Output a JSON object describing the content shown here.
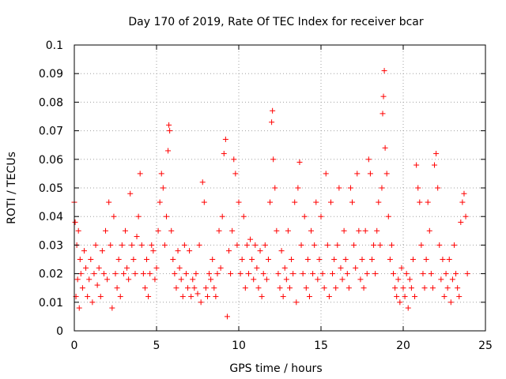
{
  "chart_data": {
    "type": "scatter",
    "title": "Day 170 of 2019, Rate Of TEC Index for receiver bcar",
    "xlabel": "GPS time / hours",
    "ylabel": "ROTI / TECUs",
    "xlim": [
      0,
      25
    ],
    "ylim": [
      0,
      0.1
    ],
    "xticks": [
      0,
      5,
      10,
      15,
      20,
      25
    ],
    "xtick_labels": [
      "0",
      "5",
      "10",
      "15",
      "20",
      "25"
    ],
    "yticks": [
      0,
      0.01,
      0.02,
      0.03,
      0.04,
      0.05,
      0.06,
      0.07,
      0.08,
      0.09,
      0.1
    ],
    "ytick_labels": [
      "0",
      "0.01",
      "0.02",
      "0.03",
      "0.04",
      "0.05",
      "0.06",
      "0.07",
      "0.08",
      "0.09",
      "0.1"
    ],
    "grid": true,
    "marker": "plus",
    "color": "#ff0000",
    "series": [
      {
        "points": [
          [
            0.0,
            0.045
          ],
          [
            0.05,
            0.038
          ],
          [
            0.1,
            0.012
          ],
          [
            0.15,
            0.03
          ],
          [
            0.2,
            0.018
          ],
          [
            0.25,
            0.035
          ],
          [
            0.3,
            0.008
          ],
          [
            0.35,
            0.025
          ],
          [
            0.4,
            0.02
          ],
          [
            0.5,
            0.015
          ],
          [
            0.6,
            0.028
          ],
          [
            0.7,
            0.022
          ],
          [
            0.8,
            0.012
          ],
          [
            0.9,
            0.018
          ],
          [
            1.0,
            0.025
          ],
          [
            1.1,
            0.01
          ],
          [
            1.2,
            0.02
          ],
          [
            1.3,
            0.03
          ],
          [
            1.4,
            0.016
          ],
          [
            1.5,
            0.022
          ],
          [
            1.6,
            0.012
          ],
          [
            1.7,
            0.028
          ],
          [
            1.8,
            0.02
          ],
          [
            1.9,
            0.035
          ],
          [
            2.0,
            0.018
          ],
          [
            2.1,
            0.045
          ],
          [
            2.2,
            0.03
          ],
          [
            2.3,
            0.008
          ],
          [
            2.4,
            0.04
          ],
          [
            2.5,
            0.02
          ],
          [
            2.6,
            0.015
          ],
          [
            2.7,
            0.025
          ],
          [
            2.8,
            0.012
          ],
          [
            2.9,
            0.03
          ],
          [
            3.0,
            0.02
          ],
          [
            3.1,
            0.035
          ],
          [
            3.2,
            0.022
          ],
          [
            3.3,
            0.018
          ],
          [
            3.4,
            0.048
          ],
          [
            3.5,
            0.03
          ],
          [
            3.6,
            0.025
          ],
          [
            3.7,
            0.02
          ],
          [
            3.8,
            0.033
          ],
          [
            3.9,
            0.04
          ],
          [
            4.0,
            0.055
          ],
          [
            4.1,
            0.03
          ],
          [
            4.2,
            0.02
          ],
          [
            4.3,
            0.015
          ],
          [
            4.4,
            0.025
          ],
          [
            4.5,
            0.012
          ],
          [
            4.6,
            0.02
          ],
          [
            4.7,
            0.03
          ],
          [
            4.8,
            0.028
          ],
          [
            4.9,
            0.018
          ],
          [
            5.0,
            0.022
          ],
          [
            5.1,
            0.035
          ],
          [
            5.2,
            0.045
          ],
          [
            5.3,
            0.055
          ],
          [
            5.4,
            0.05
          ],
          [
            5.5,
            0.03
          ],
          [
            5.6,
            0.04
          ],
          [
            5.7,
            0.063
          ],
          [
            5.75,
            0.072
          ],
          [
            5.8,
            0.07
          ],
          [
            5.9,
            0.035
          ],
          [
            6.0,
            0.025
          ],
          [
            6.1,
            0.02
          ],
          [
            6.2,
            0.015
          ],
          [
            6.3,
            0.028
          ],
          [
            6.4,
            0.022
          ],
          [
            6.5,
            0.018
          ],
          [
            6.6,
            0.012
          ],
          [
            6.7,
            0.03
          ],
          [
            6.8,
            0.02
          ],
          [
            6.9,
            0.015
          ],
          [
            7.0,
            0.028
          ],
          [
            7.1,
            0.012
          ],
          [
            7.2,
            0.018
          ],
          [
            7.3,
            0.015
          ],
          [
            7.4,
            0.02
          ],
          [
            7.5,
            0.013
          ],
          [
            7.6,
            0.03
          ],
          [
            7.7,
            0.01
          ],
          [
            7.8,
            0.052
          ],
          [
            7.9,
            0.045
          ],
          [
            8.0,
            0.015
          ],
          [
            8.1,
            0.012
          ],
          [
            8.2,
            0.02
          ],
          [
            8.3,
            0.018
          ],
          [
            8.4,
            0.025
          ],
          [
            8.5,
            0.015
          ],
          [
            8.6,
            0.012
          ],
          [
            8.7,
            0.02
          ],
          [
            8.8,
            0.035
          ],
          [
            8.9,
            0.022
          ],
          [
            9.0,
            0.04
          ],
          [
            9.1,
            0.062
          ],
          [
            9.2,
            0.067
          ],
          [
            9.3,
            0.005
          ],
          [
            9.4,
            0.028
          ],
          [
            9.5,
            0.02
          ],
          [
            9.6,
            0.035
          ],
          [
            9.7,
            0.06
          ],
          [
            9.8,
            0.055
          ],
          [
            9.9,
            0.03
          ],
          [
            10.0,
            0.045
          ],
          [
            10.1,
            0.02
          ],
          [
            10.2,
            0.025
          ],
          [
            10.3,
            0.04
          ],
          [
            10.4,
            0.015
          ],
          [
            10.5,
            0.03
          ],
          [
            10.6,
            0.02
          ],
          [
            10.7,
            0.032
          ],
          [
            10.8,
            0.025
          ],
          [
            10.9,
            0.018
          ],
          [
            11.0,
            0.03
          ],
          [
            11.1,
            0.022
          ],
          [
            11.2,
            0.015
          ],
          [
            11.3,
            0.028
          ],
          [
            11.4,
            0.012
          ],
          [
            11.5,
            0.02
          ],
          [
            11.6,
            0.03
          ],
          [
            11.7,
            0.018
          ],
          [
            11.8,
            0.025
          ],
          [
            11.9,
            0.045
          ],
          [
            12.0,
            0.073
          ],
          [
            12.05,
            0.077
          ],
          [
            12.1,
            0.06
          ],
          [
            12.2,
            0.05
          ],
          [
            12.3,
            0.035
          ],
          [
            12.4,
            0.02
          ],
          [
            12.5,
            0.015
          ],
          [
            12.6,
            0.028
          ],
          [
            12.7,
            0.012
          ],
          [
            12.8,
            0.022
          ],
          [
            12.9,
            0.018
          ],
          [
            13.0,
            0.035
          ],
          [
            13.1,
            0.015
          ],
          [
            13.2,
            0.025
          ],
          [
            13.3,
            0.02
          ],
          [
            13.4,
            0.045
          ],
          [
            13.5,
            0.01
          ],
          [
            13.6,
            0.05
          ],
          [
            13.7,
            0.059
          ],
          [
            13.8,
            0.03
          ],
          [
            13.9,
            0.02
          ],
          [
            14.0,
            0.04
          ],
          [
            14.1,
            0.015
          ],
          [
            14.2,
            0.025
          ],
          [
            14.3,
            0.012
          ],
          [
            14.4,
            0.035
          ],
          [
            14.5,
            0.02
          ],
          [
            14.6,
            0.03
          ],
          [
            14.7,
            0.045
          ],
          [
            14.8,
            0.018
          ],
          [
            14.9,
            0.025
          ],
          [
            15.0,
            0.04
          ],
          [
            15.1,
            0.02
          ],
          [
            15.2,
            0.015
          ],
          [
            15.3,
            0.055
          ],
          [
            15.4,
            0.03
          ],
          [
            15.5,
            0.012
          ],
          [
            15.6,
            0.045
          ],
          [
            15.7,
            0.02
          ],
          [
            15.8,
            0.025
          ],
          [
            15.9,
            0.015
          ],
          [
            16.0,
            0.03
          ],
          [
            16.1,
            0.05
          ],
          [
            16.2,
            0.022
          ],
          [
            16.3,
            0.018
          ],
          [
            16.4,
            0.035
          ],
          [
            16.5,
            0.025
          ],
          [
            16.6,
            0.02
          ],
          [
            16.7,
            0.015
          ],
          [
            16.8,
            0.05
          ],
          [
            16.9,
            0.045
          ],
          [
            17.0,
            0.03
          ],
          [
            17.1,
            0.022
          ],
          [
            17.2,
            0.055
          ],
          [
            17.3,
            0.035
          ],
          [
            17.4,
            0.018
          ],
          [
            17.5,
            0.025
          ],
          [
            17.6,
            0.015
          ],
          [
            17.7,
            0.035
          ],
          [
            17.8,
            0.02
          ],
          [
            17.9,
            0.06
          ],
          [
            18.0,
            0.055
          ],
          [
            18.1,
            0.025
          ],
          [
            18.2,
            0.03
          ],
          [
            18.3,
            0.02
          ],
          [
            18.4,
            0.035
          ],
          [
            18.5,
            0.045
          ],
          [
            18.6,
            0.03
          ],
          [
            18.7,
            0.05
          ],
          [
            18.75,
            0.076
          ],
          [
            18.8,
            0.082
          ],
          [
            18.85,
            0.091
          ],
          [
            18.9,
            0.064
          ],
          [
            19.0,
            0.055
          ],
          [
            19.1,
            0.04
          ],
          [
            19.2,
            0.025
          ],
          [
            19.3,
            0.03
          ],
          [
            19.4,
            0.02
          ],
          [
            19.5,
            0.015
          ],
          [
            19.6,
            0.012
          ],
          [
            19.7,
            0.018
          ],
          [
            19.8,
            0.01
          ],
          [
            19.9,
            0.022
          ],
          [
            20.0,
            0.015
          ],
          [
            20.1,
            0.012
          ],
          [
            20.2,
            0.02
          ],
          [
            20.3,
            0.008
          ],
          [
            20.4,
            0.018
          ],
          [
            20.5,
            0.015
          ],
          [
            20.6,
            0.025
          ],
          [
            20.7,
            0.012
          ],
          [
            20.8,
            0.058
          ],
          [
            20.9,
            0.05
          ],
          [
            21.0,
            0.045
          ],
          [
            21.1,
            0.03
          ],
          [
            21.2,
            0.02
          ],
          [
            21.3,
            0.015
          ],
          [
            21.4,
            0.025
          ],
          [
            21.5,
            0.045
          ],
          [
            21.6,
            0.035
          ],
          [
            21.7,
            0.02
          ],
          [
            21.8,
            0.015
          ],
          [
            21.9,
            0.058
          ],
          [
            22.0,
            0.062
          ],
          [
            22.1,
            0.05
          ],
          [
            22.2,
            0.03
          ],
          [
            22.3,
            0.018
          ],
          [
            22.4,
            0.025
          ],
          [
            22.5,
            0.012
          ],
          [
            22.6,
            0.02
          ],
          [
            22.7,
            0.015
          ],
          [
            22.8,
            0.025
          ],
          [
            22.9,
            0.01
          ],
          [
            23.0,
            0.018
          ],
          [
            23.1,
            0.03
          ],
          [
            23.2,
            0.02
          ],
          [
            23.3,
            0.015
          ],
          [
            23.4,
            0.012
          ],
          [
            23.5,
            0.038
          ],
          [
            23.6,
            0.045
          ],
          [
            23.7,
            0.048
          ],
          [
            23.8,
            0.04
          ],
          [
            23.9,
            0.02
          ]
        ]
      }
    ]
  }
}
